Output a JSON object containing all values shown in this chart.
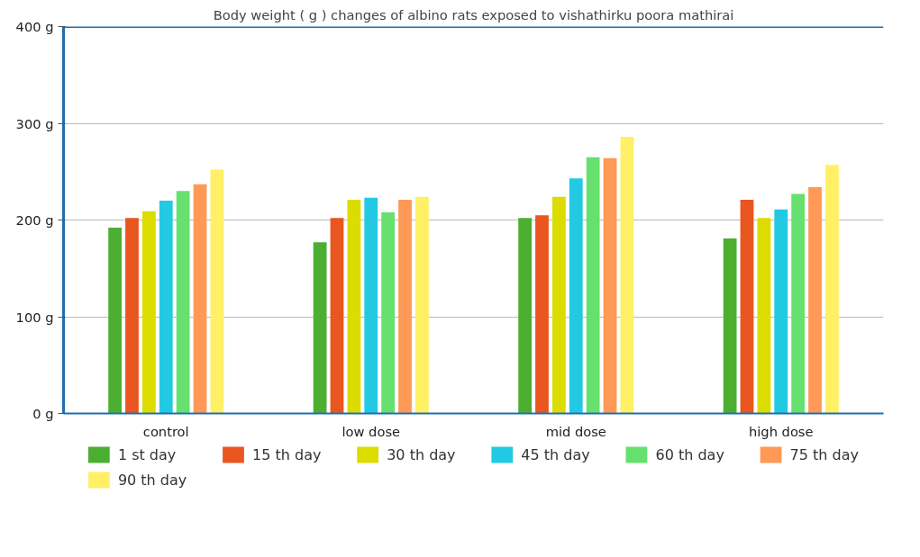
{
  "chart_data": {
    "type": "bar",
    "title": "Body weight ( g ) changes of albino rats exposed to vishathirku poora mathirai",
    "categories": [
      "control",
      "low dose",
      "mid dose",
      "high dose"
    ],
    "series": [
      {
        "name": "1 st day",
        "color": "#4caf32",
        "values": [
          192,
          177,
          202,
          181
        ]
      },
      {
        "name": "15 th day",
        "color": "#e9561f",
        "values": [
          202,
          202,
          205,
          221
        ]
      },
      {
        "name": "30 th day",
        "color": "#dcdc00",
        "values": [
          209,
          221,
          224,
          202
        ]
      },
      {
        "name": "45 th day",
        "color": "#22c9e2",
        "values": [
          220,
          223,
          243,
          211
        ]
      },
      {
        "name": "60 th day",
        "color": "#66e06e",
        "values": [
          230,
          208,
          265,
          227
        ]
      },
      {
        "name": "75 th day",
        "color": "#ff9955",
        "values": [
          237,
          221,
          264,
          234
        ]
      },
      {
        "name": "90 th day",
        "color": "#fff066",
        "values": [
          252,
          224,
          286,
          257
        ]
      }
    ],
    "ylim": [
      0,
      400
    ],
    "yticks": [
      {
        "value": 0,
        "label": "0 g"
      },
      {
        "value": 100,
        "label": "100 g"
      },
      {
        "value": 200,
        "label": "200 g"
      },
      {
        "value": 300,
        "label": "300 g"
      },
      {
        "value": 400,
        "label": "400 g"
      }
    ],
    "grid": "y",
    "legend": "bottom"
  }
}
